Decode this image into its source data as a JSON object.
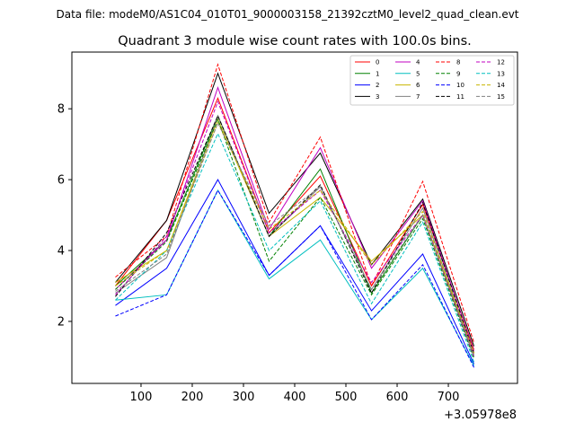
{
  "chart_data": {
    "type": "line",
    "suptitle": "Data file: modeM0/AS1C04_010T01_9000003158_21392cztM0_level2_quad_clean.evt",
    "title": "Quadrant 3 module wise count rates with 100.0s bins.",
    "xlabel": "",
    "ylabel": "",
    "x_offset_label": "+3.05978e8",
    "x": [
      50,
      150,
      250,
      350,
      450,
      550,
      650,
      750
    ],
    "xlim": [
      -35,
      835
    ],
    "ylim": [
      0.25,
      9.6
    ],
    "xticks": [
      100,
      200,
      300,
      400,
      500,
      600,
      700
    ],
    "xtick_labels": [
      "100",
      "200",
      "300",
      "400",
      "500",
      "600",
      "700"
    ],
    "yticks": [
      2,
      4,
      6,
      8
    ],
    "ytick_labels": [
      "2",
      "4",
      "6",
      "8"
    ],
    "grid": false,
    "legend_position": "top-right",
    "legend_columns": 4,
    "series": [
      {
        "name": "0",
        "color": "#ff0000",
        "dashed": false,
        "values": [
          3.0,
          4.85,
          8.3,
          4.5,
          6.1,
          3.0,
          5.3,
          1.2
        ]
      },
      {
        "name": "1",
        "color": "#008000",
        "dashed": false,
        "values": [
          3.0,
          4.3,
          7.8,
          4.4,
          6.3,
          2.8,
          5.0,
          1.0
        ]
      },
      {
        "name": "2",
        "color": "#0000ff",
        "dashed": false,
        "values": [
          2.45,
          3.5,
          6.0,
          3.3,
          4.7,
          2.3,
          3.9,
          0.8
        ]
      },
      {
        "name": "3",
        "color": "#000000",
        "dashed": false,
        "values": [
          3.1,
          4.85,
          9.0,
          5.05,
          6.75,
          3.6,
          5.45,
          1.3
        ]
      },
      {
        "name": "4",
        "color": "#c000c0",
        "dashed": false,
        "values": [
          2.9,
          4.3,
          8.6,
          4.6,
          6.9,
          3.5,
          5.4,
          1.15
        ]
      },
      {
        "name": "5",
        "color": "#00bfbf",
        "dashed": false,
        "values": [
          2.6,
          2.75,
          5.7,
          3.2,
          4.3,
          2.05,
          3.5,
          0.75
        ]
      },
      {
        "name": "6",
        "color": "#c8b400",
        "dashed": false,
        "values": [
          3.1,
          4.0,
          7.7,
          4.4,
          5.5,
          3.7,
          5.0,
          1.1
        ]
      },
      {
        "name": "7",
        "color": "#808080",
        "dashed": false,
        "values": [
          2.8,
          3.8,
          7.8,
          4.4,
          5.8,
          2.9,
          5.2,
          1.05
        ]
      },
      {
        "name": "8",
        "color": "#ff0000",
        "dashed": true,
        "values": [
          3.25,
          4.4,
          9.25,
          4.8,
          7.2,
          3.0,
          5.95,
          1.4
        ]
      },
      {
        "name": "9",
        "color": "#008000",
        "dashed": true,
        "values": [
          2.9,
          4.25,
          7.7,
          3.7,
          5.5,
          2.75,
          4.9,
          0.95
        ]
      },
      {
        "name": "10",
        "color": "#0000ff",
        "dashed": true,
        "values": [
          2.15,
          2.75,
          5.7,
          3.3,
          4.7,
          2.05,
          3.6,
          0.7
        ]
      },
      {
        "name": "11",
        "color": "#000000",
        "dashed": true,
        "values": [
          2.7,
          4.5,
          7.8,
          4.4,
          5.85,
          2.8,
          5.35,
          1.1
        ]
      },
      {
        "name": "12",
        "color": "#c000c0",
        "dashed": true,
        "values": [
          2.75,
          4.4,
          8.2,
          4.5,
          5.7,
          3.1,
          5.0,
          1.0
        ]
      },
      {
        "name": "13",
        "color": "#00bfbf",
        "dashed": true,
        "values": [
          2.6,
          4.0,
          7.3,
          4.0,
          5.4,
          2.5,
          4.8,
          0.85
        ]
      },
      {
        "name": "14",
        "color": "#c8b400",
        "dashed": true,
        "values": [
          3.0,
          4.0,
          7.6,
          4.6,
          5.7,
          3.6,
          5.1,
          1.1
        ]
      },
      {
        "name": "15",
        "color": "#808080",
        "dashed": true,
        "values": [
          2.85,
          3.9,
          7.6,
          4.7,
          5.8,
          2.9,
          5.0,
          1.0
        ]
      }
    ]
  }
}
